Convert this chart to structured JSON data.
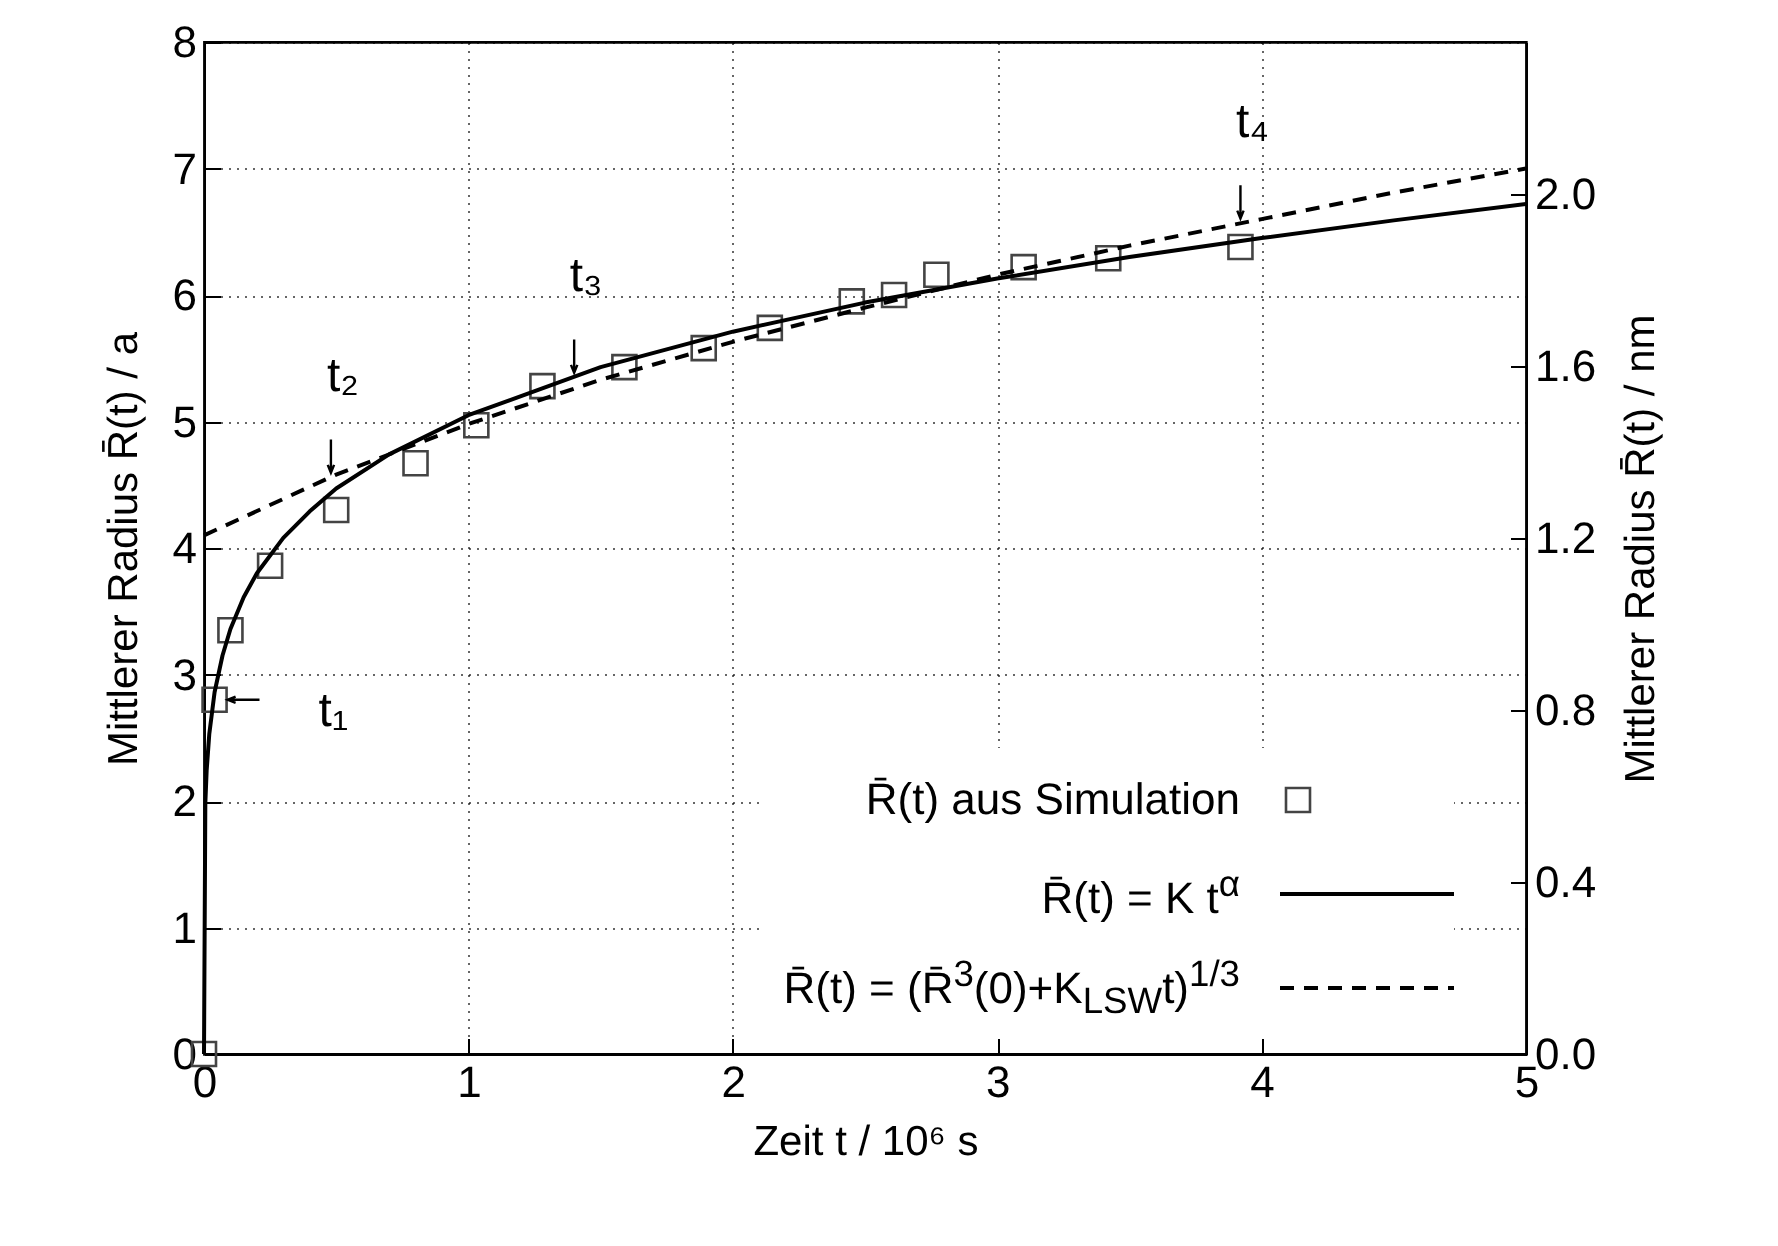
{
  "chart_data": {
    "type": "line",
    "xlabel": "Zeit t / 10⁶ s",
    "ylabel": "Mittlerer Radius R̄(t) / a",
    "y2label": "Mittlerer Radius R̄(t) / nm",
    "xlim": [
      0,
      5
    ],
    "xticks": [
      0,
      1,
      2,
      3,
      4,
      5
    ],
    "ylim": [
      0,
      8
    ],
    "yticks": [
      0,
      1,
      2,
      3,
      4,
      5,
      6,
      7,
      8
    ],
    "y2lim": [
      0,
      2.353
    ],
    "y2ticks": [
      {
        "value": 0,
        "label": "0.0"
      },
      0.4,
      0.8,
      1.2,
      1.6,
      {
        "value": 2,
        "label": "2.0"
      }
    ],
    "grid": true,
    "legend": "bottom right",
    "series": [
      {
        "name": "R̄(t) aus Simulation",
        "type": "scatter",
        "marker": "square",
        "color": "#444444",
        "x": [
          0,
          0.04,
          0.1,
          0.25,
          0.5,
          0.8,
          1.03,
          1.28,
          1.59,
          1.89,
          2.14,
          2.45,
          2.61,
          2.77,
          3.1,
          3.42,
          3.92
        ],
        "values": [
          0,
          2.8,
          3.35,
          3.86,
          4.3,
          4.67,
          4.97,
          5.28,
          5.43,
          5.58,
          5.74,
          5.95,
          6.0,
          6.16,
          6.22,
          6.29,
          6.38
        ]
      },
      {
        "name": "R̄(t) = K t$^{α}$",
        "line_style": "solid",
        "color": "#000000",
        "x": [
          0,
          0.005,
          0.01,
          0.02,
          0.04,
          0.07,
          0.1,
          0.15,
          0.2,
          0.3,
          0.4,
          0.5,
          0.7,
          1,
          1.5,
          2,
          2.5,
          3,
          3.5,
          4,
          4.5,
          5
        ],
        "values": [
          0,
          1.98,
          2.24,
          2.53,
          2.86,
          3.15,
          3.36,
          3.61,
          3.8,
          4.08,
          4.29,
          4.47,
          4.74,
          5.05,
          5.43,
          5.71,
          5.94,
          6.13,
          6.3,
          6.45,
          6.59,
          6.72
        ]
      },
      {
        "name": "R̄(t) = (R̄$^{3}$(0)+K$_{LSW}$t)$^{1/3}$",
        "line_style": "dashed",
        "color": "#000000",
        "x": [
          0,
          0.5,
          1,
          1.5,
          2,
          2.5,
          3,
          3.5,
          4,
          4.5,
          5
        ],
        "values": [
          4.1,
          4.58,
          4.98,
          5.33,
          5.63,
          5.9,
          6.16,
          6.39,
          6.6,
          6.81,
          7.0
        ]
      }
    ],
    "annotations": [
      {
        "text": "t₁",
        "x": 0.04,
        "y": 2.8
      },
      {
        "text": "t₂",
        "x": 0.48,
        "y": 4.56
      },
      {
        "text": "t₃",
        "x": 1.4,
        "y": 5.35
      },
      {
        "text": "t₄",
        "x": 3.92,
        "y": 6.57
      }
    ]
  }
}
